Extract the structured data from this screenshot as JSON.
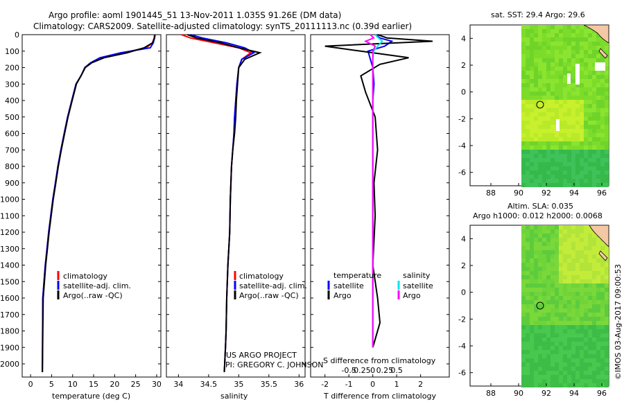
{
  "title": {
    "line1": "Argo profile: aoml 1901445_51 13-Nov-2011 1.035S 91.26E (DM data)",
    "line2": "Climatology: CARS2009. Satellite-adjusted climatology: synTS_20111113.nc (0.39d earlier)"
  },
  "colors": {
    "climatology": "#ff0000",
    "satellite": "#0000ff",
    "argo": "#000000",
    "sal_satellite": "#00e5ee",
    "sal_argo": "#ff00ff"
  },
  "yaxis": {
    "ticks": [
      "0",
      "100",
      "200",
      "300",
      "400",
      "500",
      "600",
      "700",
      "800",
      "900",
      "1000",
      "1100",
      "1200",
      "1300",
      "1400",
      "1500",
      "1600",
      "1700",
      "1800",
      "1900",
      "2000"
    ]
  },
  "panel_temp": {
    "xlabel": "temperature (deg C)",
    "xticks": [
      "0",
      "5",
      "10",
      "15",
      "20",
      "25",
      "30"
    ],
    "legend": [
      "climatology",
      "satellite-adj. clim.",
      "Argo(..raw -QC)"
    ]
  },
  "panel_sal": {
    "xlabel": "salinity",
    "xticks": [
      "34",
      "34.5",
      "35",
      "35.5",
      "36"
    ],
    "legend": [
      "climatology",
      "satellite-adj. clim.",
      "Argo(..raw -QC)"
    ],
    "credit1": "US ARGO PROJECT",
    "credit2": "PI: GREGORY C. JOHNSON"
  },
  "panel_diff": {
    "xlabel": "T difference from climatology",
    "toplabel": "S difference from climatology",
    "xticks": [
      "-2",
      "-1",
      "0",
      "1",
      "2"
    ],
    "sticks": [
      "-0.5",
      "-0.25",
      "0",
      "0.25",
      "0.5"
    ],
    "legend_temp_header": "temperature",
    "legend_sal_header": "salinity",
    "legend_sat": "satellite",
    "legend_argo": "Argo"
  },
  "map_top": {
    "title": "sat. SST: 29.4 Argo: 29.6",
    "xticks": [
      "88",
      "90",
      "92",
      "94",
      "96"
    ],
    "yticks": [
      "4",
      "2",
      "0",
      "-2",
      "-4",
      "-6"
    ]
  },
  "map_bottom": {
    "title1": "Altim. SLA: 0.035",
    "title2": "Argo h1000: 0.012 h2000: 0.0068",
    "xticks": [
      "88",
      "90",
      "92",
      "94",
      "96"
    ],
    "yticks": [
      "4",
      "2",
      "0",
      "-2",
      "-4",
      "-6"
    ]
  },
  "stamp": "©IMOS 03-Aug-2017 09:00:53",
  "chart_data": [
    {
      "type": "line",
      "panel": "temperature",
      "xlabel": "temperature (deg C)",
      "ylabel": "",
      "xlim": [
        -2,
        31
      ],
      "ylim": [
        2080,
        0
      ],
      "series": [
        {
          "name": "climatology",
          "x": [
            29.5,
            29.4,
            29.0,
            27.5,
            22.0,
            17.0,
            14.5,
            13.0,
            12.0,
            10.8,
            9.8,
            8.8,
            8.0,
            7.2,
            6.5,
            5.9,
            5.3,
            4.8,
            4.3,
            3.9,
            3.5,
            3.2,
            2.9,
            2.8
          ],
          "y": [
            0,
            20,
            50,
            80,
            110,
            140,
            170,
            200,
            250,
            300,
            400,
            500,
            600,
            700,
            800,
            900,
            1000,
            1100,
            1200,
            1300,
            1400,
            1500,
            1600,
            2050
          ]
        },
        {
          "name": "satellite-adj. clim.",
          "x": [
            29.6,
            29.5,
            29.2,
            28.5,
            21.5,
            16.5,
            14.3,
            12.9,
            12.0,
            10.8,
            9.8,
            8.8,
            8.0,
            7.2,
            6.5,
            5.9,
            5.3,
            4.8,
            4.3,
            3.9,
            3.5,
            3.2,
            2.9,
            2.8
          ],
          "y": [
            0,
            20,
            50,
            80,
            110,
            140,
            170,
            200,
            250,
            300,
            400,
            500,
            600,
            700,
            800,
            900,
            1000,
            1100,
            1200,
            1300,
            1400,
            1500,
            1600,
            2050
          ]
        },
        {
          "name": "Argo(..raw -QC)",
          "x": [
            29.6,
            29.5,
            29.0,
            27.0,
            23.0,
            17.5,
            14.6,
            13.0,
            12.0,
            10.9,
            9.9,
            8.9,
            8.1,
            7.3,
            6.6,
            6.0,
            5.4,
            4.9,
            4.4,
            4.0,
            3.6,
            3.3,
            3.0,
            2.8
          ],
          "y": [
            0,
            20,
            50,
            80,
            110,
            140,
            170,
            200,
            250,
            300,
            400,
            500,
            600,
            700,
            800,
            900,
            1000,
            1100,
            1200,
            1300,
            1400,
            1500,
            1600,
            2050
          ]
        }
      ]
    },
    {
      "type": "line",
      "panel": "salinity",
      "xlabel": "salinity",
      "xlim": [
        33.8,
        36.1
      ],
      "ylim": [
        2080,
        0
      ],
      "series": [
        {
          "name": "climatology",
          "x": [
            34.05,
            34.2,
            34.6,
            35.0,
            35.2,
            35.05,
            35.0,
            34.97,
            34.95,
            34.93,
            34.92,
            34.9,
            34.88,
            34.86,
            34.85,
            34.82,
            34.8,
            34.79,
            34.78,
            34.76
          ],
          "y": [
            0,
            20,
            50,
            80,
            110,
            150,
            200,
            300,
            400,
            500,
            600,
            700,
            800,
            1000,
            1200,
            1400,
            1600,
            1800,
            1900,
            2050
          ]
        },
        {
          "name": "satellite-adj. clim.",
          "x": [
            34.2,
            34.4,
            34.8,
            35.1,
            35.25,
            35.05,
            35.0,
            34.97,
            34.95,
            34.93,
            34.92,
            34.9,
            34.88,
            34.86,
            34.85,
            34.82,
            34.8,
            34.79,
            34.78,
            34.76
          ],
          "y": [
            0,
            20,
            50,
            80,
            110,
            150,
            200,
            300,
            400,
            500,
            600,
            700,
            800,
            1000,
            1200,
            1400,
            1600,
            1800,
            1900,
            2050
          ]
        },
        {
          "name": "Argo(..raw -QC)",
          "x": [
            34.15,
            34.3,
            34.7,
            35.0,
            35.35,
            35.1,
            35.0,
            34.98,
            34.96,
            34.95,
            34.93,
            34.9,
            34.88,
            34.86,
            34.85,
            34.82,
            34.8,
            34.79,
            34.78,
            34.76
          ],
          "y": [
            0,
            20,
            50,
            80,
            110,
            150,
            200,
            300,
            400,
            500,
            600,
            700,
            800,
            1000,
            1200,
            1400,
            1600,
            1800,
            1900,
            2050
          ]
        }
      ]
    },
    {
      "type": "line",
      "panel": "difference",
      "xlabel": "T difference from climatology",
      "toplabel": "S difference from climatology",
      "xlim": [
        -2.6,
        3.2
      ],
      "ylim": [
        2080,
        0
      ],
      "series": [
        {
          "name": "temperature satellite",
          "x": [
            0.1,
            0.3,
            0.8,
            0.5,
            -0.2,
            -0.1,
            0,
            0.05,
            0,
            0,
            0,
            0,
            0,
            0,
            0,
            0
          ],
          "y": [
            0,
            20,
            40,
            70,
            100,
            150,
            200,
            300,
            400,
            600,
            800,
            1000,
            1200,
            1400,
            1600,
            1900
          ]
        },
        {
          "name": "temperature Argo",
          "x": [
            0.2,
            0.6,
            2.5,
            -2.0,
            -0.5,
            1.5,
            0.3,
            -0.5,
            -0.3,
            0.1,
            0.2,
            0.05,
            0.1,
            0,
            0.2,
            0.3,
            0
          ],
          "y": [
            0,
            20,
            40,
            70,
            100,
            140,
            180,
            250,
            350,
            500,
            700,
            900,
            1100,
            1400,
            1600,
            1750,
            1900
          ]
        },
        {
          "name": "salinity satellite",
          "x": [
            0.05,
            0.12,
            0.2,
            0.1,
            0.02,
            0,
            0,
            0,
            0,
            0,
            0,
            0
          ],
          "y": [
            0,
            20,
            40,
            70,
            100,
            150,
            300,
            600,
            1000,
            1400,
            1700,
            1900
          ]
        },
        {
          "name": "salinity Argo",
          "x": [
            -0.05,
            0.02,
            -0.15,
            0.05,
            0,
            0,
            0,
            0,
            0,
            0
          ],
          "y": [
            0,
            20,
            40,
            70,
            100,
            200,
            600,
            1000,
            1600,
            1900
          ]
        }
      ]
    }
  ]
}
